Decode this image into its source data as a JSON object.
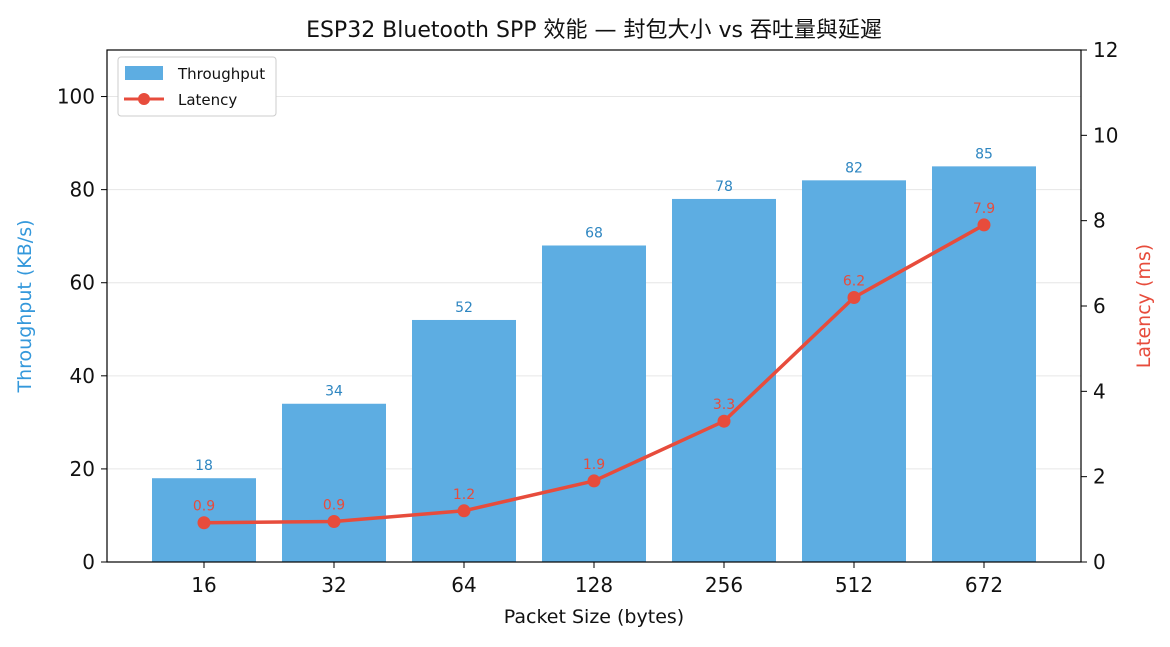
{
  "chart_data": {
    "type": "bar",
    "title": "ESP32 Bluetooth SPP 效能 — 封包大小 vs 吞吐量與延遲",
    "xlabel": "Packet Size (bytes)",
    "ylabel": "Throughput (KB/s)",
    "y2label": "Latency (ms)",
    "categories": [
      "16",
      "32",
      "64",
      "128",
      "256",
      "512",
      "672"
    ],
    "ylim": [
      0,
      110
    ],
    "y2lim": [
      0,
      12
    ],
    "yticks": [
      0,
      20,
      40,
      60,
      80,
      100
    ],
    "y2ticks": [
      0,
      2,
      4,
      6,
      8,
      10,
      12
    ],
    "grid": true,
    "legend_position": "top-left",
    "series": [
      {
        "name": "Throughput",
        "type": "bar",
        "axis": "left",
        "color": "#5dade2",
        "label_color": "#2e86c1",
        "values": [
          18,
          34,
          52,
          68,
          78,
          82,
          85
        ],
        "labels": [
          "18",
          "34",
          "52",
          "68",
          "78",
          "82",
          "85"
        ]
      },
      {
        "name": "Latency",
        "type": "line",
        "axis": "right",
        "color": "#e74c3c",
        "values": [
          0.92,
          0.95,
          1.2,
          1.9,
          3.3,
          6.2,
          7.9
        ],
        "labels": [
          "0.9",
          "0.9",
          "1.2",
          "1.9",
          "3.3",
          "6.2",
          "7.9"
        ]
      }
    ],
    "colors": {
      "left_axis_label": "#3498db",
      "right_axis_label": "#e74c3c",
      "grid": "#e6e6e6"
    }
  }
}
